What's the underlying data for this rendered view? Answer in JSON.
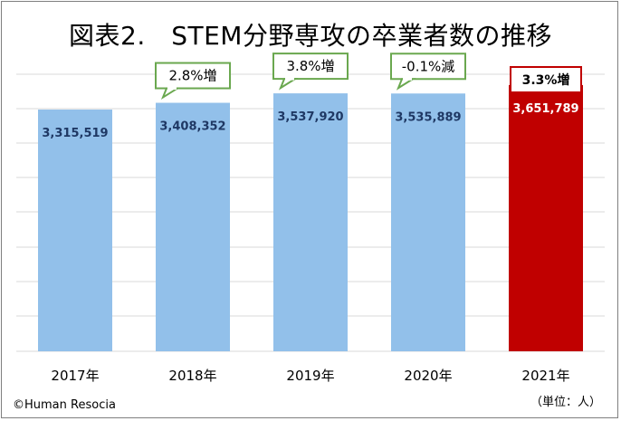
{
  "chart_data": {
    "type": "bar",
    "title": "図表2.　STEM分野専攻の卒業者数の推移",
    "categories": [
      "2017年",
      "2018年",
      "2019年",
      "2020年",
      "2021年"
    ],
    "values": [
      3315519,
      3408352,
      3537920,
      3535889,
      3651789
    ],
    "value_labels": [
      "3,315,519",
      "3,408,352",
      "3,537,920",
      "3,535,889",
      "3,651,789"
    ],
    "changes": [
      "",
      "2.8%増",
      "3.8%増",
      "-0.1%減",
      "3.3%増"
    ],
    "highlight_index": 4,
    "colors": {
      "bar": "#92c0ea",
      "highlight": "#c00000",
      "callout_border": "#6aa84f",
      "highlight_border": "#c00000",
      "value_text": "#1f3864",
      "grid": "#d9d9d9"
    },
    "xlabel": "",
    "ylabel": "",
    "ylim": [
      0,
      3800000
    ],
    "grid": true,
    "unit_note": "（単位：人）",
    "copyright": "©Human Resocia"
  }
}
